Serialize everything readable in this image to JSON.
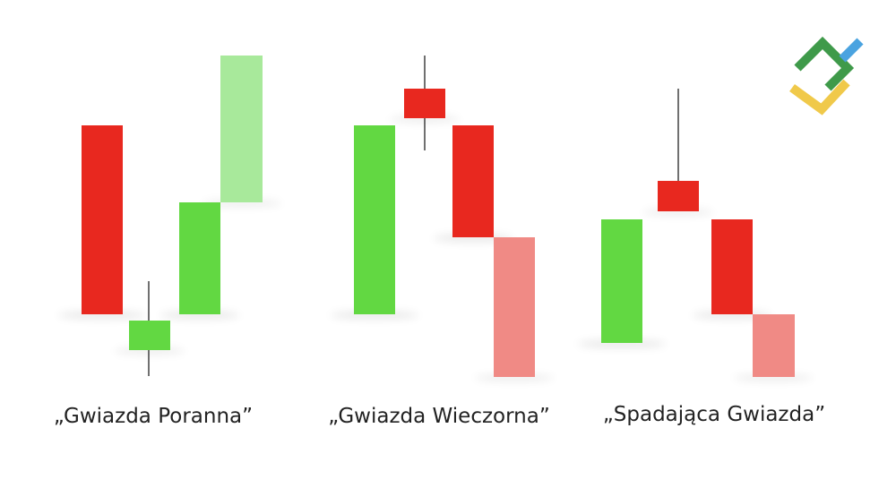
{
  "patterns": [
    {
      "label": "„Gwiazda Poranna”"
    },
    {
      "label": "„Gwiazda Wieczorna”"
    },
    {
      "label": "„Spadająca Gwiazda”"
    }
  ]
}
